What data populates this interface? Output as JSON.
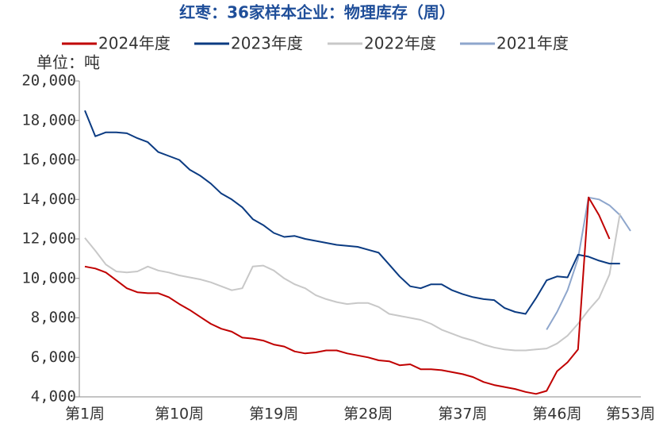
{
  "chart_data": {
    "type": "line",
    "title": "红枣：36家样本企业：物理库存（周）",
    "y_label": "单位：吨",
    "categories": [
      "第1周",
      null,
      null,
      null,
      null,
      null,
      null,
      null,
      null,
      "第10周",
      null,
      null,
      null,
      null,
      null,
      null,
      null,
      null,
      "第19周",
      null,
      null,
      null,
      null,
      null,
      null,
      null,
      null,
      "第28周",
      null,
      null,
      null,
      null,
      null,
      null,
      null,
      null,
      "第37周",
      null,
      null,
      null,
      null,
      null,
      null,
      null,
      null,
      "第46周",
      null,
      null,
      null,
      null,
      null,
      null,
      "第53周"
    ],
    "ylim": [
      4000,
      20000
    ],
    "yticks": [
      {
        "value": 4000,
        "label": "4,000"
      },
      {
        "value": 6000,
        "label": "6,000"
      },
      {
        "value": 8000,
        "label": "8,000"
      },
      {
        "value": 10000,
        "label": "10,000"
      },
      {
        "value": 12000,
        "label": "12,000"
      },
      {
        "value": 14000,
        "label": "14,000"
      },
      {
        "value": 16000,
        "label": "16,000"
      },
      {
        "value": 18000,
        "label": "18,000"
      },
      {
        "value": 20000,
        "label": "20,000"
      }
    ],
    "legend": "top",
    "series": [
      {
        "name": "2024年度",
        "color": "#c00000",
        "values": [
          10600,
          10500,
          10300,
          9900,
          9500,
          9300,
          9250,
          9250,
          9050,
          8700,
          8400,
          8050,
          7700,
          7450,
          7300,
          7000,
          6950,
          6850,
          6650,
          6550,
          6300,
          6200,
          6250,
          6350,
          6350,
          6200,
          6100,
          6000,
          5850,
          5800,
          5600,
          5650,
          5400,
          5400,
          5350,
          5250,
          5150,
          5000,
          4750,
          4600,
          4500,
          4400,
          4250,
          4150,
          4300,
          5300,
          5750,
          6400,
          14100,
          13200,
          12000,
          null,
          null
        ]
      },
      {
        "name": "2023年度",
        "color": "#0b3b82",
        "values": [
          18500,
          17200,
          17400,
          17400,
          17350,
          17100,
          16900,
          16400,
          16200,
          16000,
          15500,
          15200,
          14800,
          14300,
          14000,
          13600,
          13000,
          12700,
          12300,
          12100,
          12150,
          12000,
          11900,
          11800,
          11700,
          11650,
          11600,
          11450,
          11300,
          10700,
          10100,
          9600,
          9500,
          9700,
          9700,
          9400,
          9200,
          9050,
          8950,
          8900,
          8500,
          8300,
          8200,
          9000,
          9900,
          10100,
          10050,
          11200,
          11100,
          10900,
          10750,
          10750,
          null
        ]
      },
      {
        "name": "2022年度",
        "color": "#c8c8c8",
        "values": [
          12050,
          11400,
          10700,
          10350,
          10300,
          10350,
          10600,
          10400,
          10300,
          10150,
          10050,
          9950,
          9800,
          9600,
          9400,
          9500,
          10600,
          10650,
          10400,
          10000,
          9700,
          9500,
          9150,
          8950,
          8800,
          8700,
          8750,
          8750,
          8550,
          8200,
          8100,
          8000,
          7900,
          7700,
          7400,
          7200,
          7000,
          6850,
          6650,
          6500,
          6400,
          6350,
          6350,
          6400,
          6450,
          6700,
          7100,
          7700,
          8400,
          9000,
          10200,
          13300,
          null
        ]
      },
      {
        "name": "2021年度",
        "color": "#8ea6cc",
        "values": [
          null,
          null,
          null,
          null,
          null,
          null,
          null,
          null,
          null,
          null,
          null,
          null,
          null,
          null,
          null,
          null,
          null,
          null,
          null,
          null,
          null,
          null,
          null,
          null,
          null,
          null,
          null,
          null,
          null,
          null,
          null,
          null,
          null,
          null,
          null,
          null,
          null,
          null,
          null,
          null,
          null,
          null,
          null,
          null,
          7400,
          8300,
          9400,
          11000,
          14100,
          14000,
          13700,
          13200,
          12400
        ]
      }
    ]
  }
}
